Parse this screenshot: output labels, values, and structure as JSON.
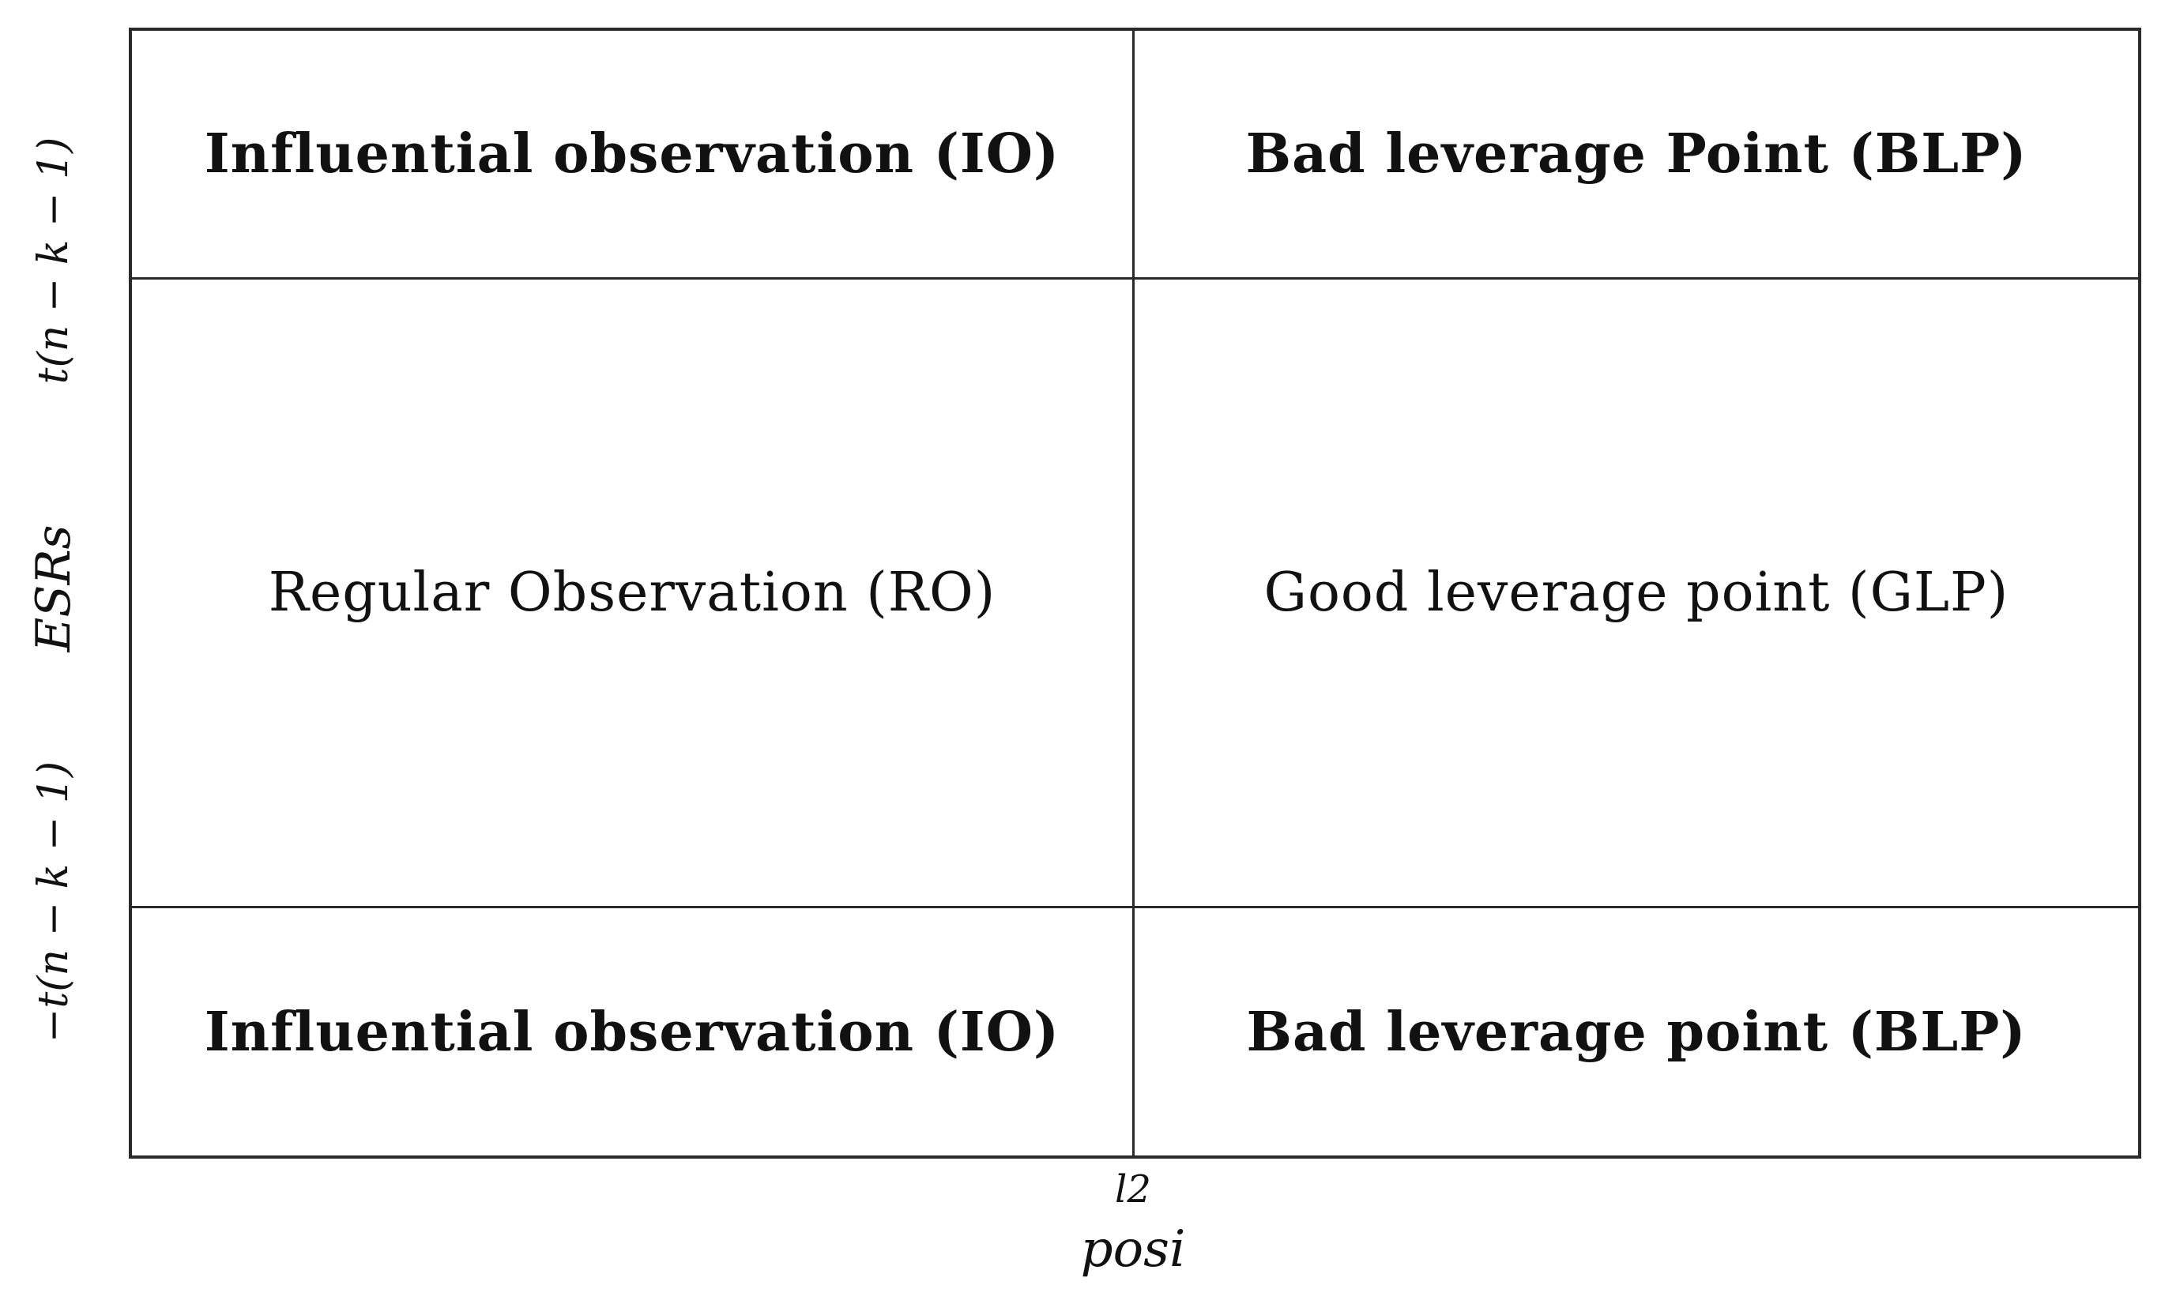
{
  "quadrants": {
    "top_left": "Influential observation (IO)",
    "top_right": "Bad leverage Point (BLP)",
    "middle_left": "Regular Observation (RO)",
    "middle_right": "Good leverage point (GLP)",
    "bottom_left": "Influential observation (IO)",
    "bottom_right": "Bad leverage point (BLP)"
  },
  "y_axis": {
    "label": "ESRs",
    "upper_threshold": "t(n − k − 1)",
    "lower_threshold": "−t(n − k − 1)"
  },
  "x_axis": {
    "label": "posi",
    "threshold": "l2"
  }
}
